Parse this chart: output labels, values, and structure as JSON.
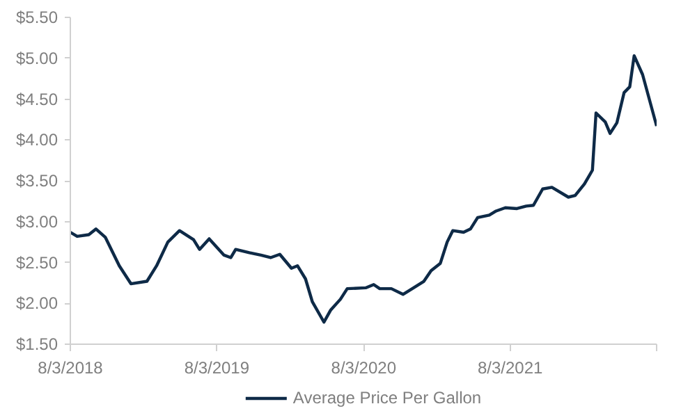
{
  "chart_data": {
    "type": "line",
    "x": [
      "2018-08-03",
      "2018-08-20",
      "2018-09-18",
      "2018-10-06",
      "2018-10-29",
      "2018-12-03",
      "2019-01-01",
      "2019-02-10",
      "2019-03-06",
      "2019-04-03",
      "2019-05-02",
      "2019-06-06",
      "2019-06-21",
      "2019-07-15",
      "2019-08-21",
      "2019-09-07",
      "2019-09-19",
      "2019-10-23",
      "2019-11-21",
      "2019-12-15",
      "2020-01-07",
      "2020-02-05",
      "2020-02-20",
      "2020-03-11",
      "2020-03-28",
      "2020-04-26",
      "2020-05-13",
      "2020-06-06",
      "2020-06-23",
      "2020-08-08",
      "2020-08-28",
      "2020-09-12",
      "2020-10-11",
      "2020-11-09",
      "2020-12-02",
      "2020-12-31",
      "2021-01-18",
      "2021-02-10",
      "2021-02-27",
      "2021-03-13",
      "2021-04-09",
      "2021-04-26",
      "2021-05-14",
      "2021-06-12",
      "2021-06-29",
      "2021-07-22",
      "2021-08-20",
      "2021-09-12",
      "2021-09-30",
      "2021-10-23",
      "2021-11-15",
      "2021-12-26",
      "2022-01-12",
      "2022-02-04",
      "2022-02-24",
      "2022-03-05",
      "2022-03-28",
      "2022-04-09",
      "2022-04-26",
      "2022-05-14",
      "2022-05-28",
      "2022-06-08",
      "2022-06-29",
      "2022-08-03"
    ],
    "series": [
      {
        "name": "Average Price Per Gallon",
        "color": "#0e2a47",
        "values": [
          2.87,
          2.82,
          2.84,
          2.91,
          2.81,
          2.46,
          2.24,
          2.27,
          2.46,
          2.75,
          2.89,
          2.78,
          2.66,
          2.79,
          2.59,
          2.56,
          2.66,
          2.62,
          2.59,
          2.56,
          2.6,
          2.43,
          2.46,
          2.3,
          2.02,
          1.77,
          1.92,
          2.05,
          2.18,
          2.19,
          2.23,
          2.18,
          2.18,
          2.11,
          2.18,
          2.27,
          2.4,
          2.49,
          2.75,
          2.89,
          2.87,
          2.91,
          3.05,
          3.08,
          3.13,
          3.17,
          3.16,
          3.19,
          3.2,
          3.4,
          3.42,
          3.3,
          3.32,
          3.46,
          3.63,
          4.33,
          4.22,
          4.08,
          4.21,
          4.58,
          4.65,
          5.03,
          4.8,
          4.17
        ]
      }
    ],
    "xlim": [
      "2018-08-03",
      "2022-08-03"
    ],
    "xticks": [
      {
        "value": "2018-08-03",
        "label": "8/3/2018"
      },
      {
        "value": "2019-08-03",
        "label": "8/3/2019"
      },
      {
        "value": "2020-08-03",
        "label": "8/3/2020"
      },
      {
        "value": "2021-08-03",
        "label": "8/3/2021"
      },
      {
        "value": "2022-08-03",
        "label": null
      }
    ],
    "ylim": [
      1.5,
      5.5
    ],
    "yticks": [
      {
        "value": 1.5,
        "label": "$1.50"
      },
      {
        "value": 2,
        "label": "$2.00"
      },
      {
        "value": 2.5,
        "label": "$2.50"
      },
      {
        "value": 3,
        "label": "$3.00"
      },
      {
        "value": 3.5,
        "label": "$3.50"
      },
      {
        "value": 4,
        "label": "$4.00"
      },
      {
        "value": 4.5,
        "label": "$4.50"
      },
      {
        "value": 5,
        "label": "$5.00"
      },
      {
        "value": 5.5,
        "label": "$5.50"
      }
    ],
    "legend": "bottom",
    "marker": "none",
    "line_style": "solid"
  }
}
